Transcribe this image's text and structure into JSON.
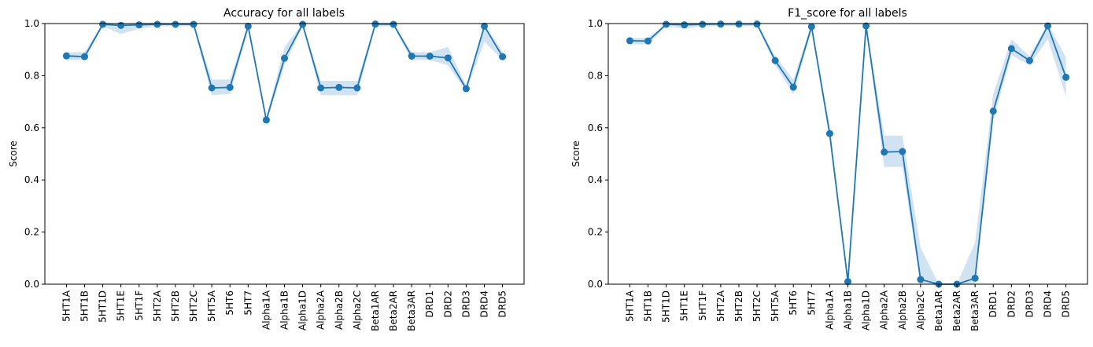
{
  "chart_data": [
    {
      "type": "line",
      "title": "Accuracy for all labels",
      "xlabel": "",
      "ylabel": "Score",
      "ylim": [
        0,
        1
      ],
      "yticks": [
        "0.0",
        "0.2",
        "0.4",
        "0.6",
        "0.8",
        "1.0"
      ],
      "grid": false,
      "color": "#1f77b4",
      "band_color": "#c6dbef",
      "categories": [
        "5HT1A",
        "5HT1B",
        "5HT1D",
        "5HT1E",
        "5HT1F",
        "5HT2A",
        "5HT2B",
        "5HT2C",
        "5HT5A",
        "5HT6",
        "5HT7",
        "Alpha1A",
        "Alpha1B",
        "Alpha1D",
        "Alpha2A",
        "Alpha2B",
        "Alpha2C",
        "Beta1AR",
        "Beta2AR",
        "Beta3AR",
        "DRD1",
        "DRD2",
        "DRD3",
        "DRD4",
        "DRD5"
      ],
      "values": [
        0.876,
        0.873,
        0.997,
        0.993,
        0.995,
        0.997,
        0.997,
        0.997,
        0.753,
        0.755,
        0.99,
        0.63,
        0.867,
        0.997,
        0.753,
        0.755,
        0.753,
        0.998,
        0.997,
        0.875,
        0.875,
        0.868,
        0.75,
        0.99,
        0.873
      ],
      "band_lower": [
        0.86,
        0.86,
        0.99,
        0.96,
        0.98,
        0.99,
        0.99,
        0.99,
        0.725,
        0.73,
        0.975,
        0.62,
        0.84,
        0.99,
        0.725,
        0.725,
        0.725,
        0.99,
        0.99,
        0.86,
        0.86,
        0.84,
        0.74,
        0.93,
        0.86
      ],
      "band_upper": [
        0.89,
        0.89,
        1.0,
        1.0,
        1.0,
        1.0,
        1.0,
        1.0,
        0.785,
        0.785,
        1.0,
        0.64,
        0.91,
        1.0,
        0.78,
        0.78,
        0.78,
        1.0,
        1.0,
        0.89,
        0.89,
        0.91,
        0.76,
        1.0,
        0.89
      ]
    },
    {
      "type": "line",
      "title": "F1_score for all labels",
      "xlabel": "",
      "ylabel": "Score",
      "ylim": [
        0,
        1
      ],
      "yticks": [
        "0.0",
        "0.2",
        "0.4",
        "0.6",
        "0.8",
        "1.0"
      ],
      "grid": false,
      "color": "#1f77b4",
      "band_color": "#c6dbef",
      "categories": [
        "5HT1A",
        "5HT1B",
        "5HT1D",
        "5HT1E",
        "5HT1F",
        "5HT2A",
        "5HT2B",
        "5HT2C",
        "5HT5A",
        "5HT6",
        "5HT7",
        "Alpha1A",
        "Alpha1B",
        "Alpha1D",
        "Alpha2A",
        "Alpha2B",
        "Alpha2C",
        "Beta1AR",
        "Beta2AR",
        "Beta3AR",
        "DRD1",
        "DRD2",
        "DRD3",
        "DRD4",
        "DRD5"
      ],
      "values": [
        0.934,
        0.933,
        0.997,
        0.995,
        0.997,
        0.998,
        0.998,
        0.998,
        0.858,
        0.756,
        0.988,
        0.578,
        0.01,
        0.991,
        0.507,
        0.509,
        0.018,
        0.0,
        0.0,
        0.023,
        0.664,
        0.904,
        0.858,
        0.991,
        0.794
      ],
      "band_lower": [
        0.92,
        0.92,
        0.99,
        0.98,
        0.99,
        0.99,
        0.99,
        0.99,
        0.84,
        0.73,
        0.975,
        0.55,
        0.0,
        0.975,
        0.45,
        0.45,
        0.0,
        0.0,
        0.0,
        0.0,
        0.63,
        0.88,
        0.84,
        0.94,
        0.72
      ],
      "band_upper": [
        0.945,
        0.945,
        1.0,
        1.0,
        1.0,
        1.0,
        1.0,
        1.0,
        0.875,
        0.785,
        1.0,
        0.6,
        0.02,
        1.0,
        0.57,
        0.57,
        0.14,
        0.0,
        0.0,
        0.16,
        0.73,
        0.94,
        0.875,
        1.0,
        0.87
      ]
    }
  ]
}
